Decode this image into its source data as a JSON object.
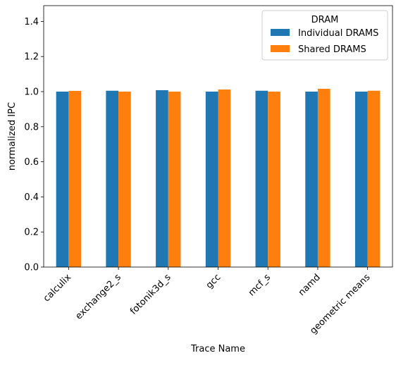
{
  "chart_data": {
    "type": "bar",
    "title": "",
    "xlabel": "Trace Name",
    "ylabel": "normalized IPC",
    "ylim": [
      0,
      1.49
    ],
    "yticks": [
      "0.0",
      "0.2",
      "0.4",
      "0.6",
      "0.8",
      "1.0",
      "1.2",
      "1.4"
    ],
    "categories": [
      "calculix",
      "exchange2_s",
      "fotonik3d_s",
      "gcc",
      "mcf_s",
      "namd",
      "geometric means"
    ],
    "legend_title": "DRAM",
    "legend_position": "top-right",
    "grid": false,
    "series": [
      {
        "name": "Individual DRAMS",
        "color": "#1f77b4",
        "values": [
          1.0,
          1.005,
          1.008,
          1.0,
          1.005,
          1.0,
          1.0
        ]
      },
      {
        "name": "Shared DRAMS",
        "color": "#ff7f0e",
        "values": [
          1.004,
          1.0,
          1.0,
          1.012,
          1.0,
          1.016,
          1.005
        ]
      }
    ]
  }
}
